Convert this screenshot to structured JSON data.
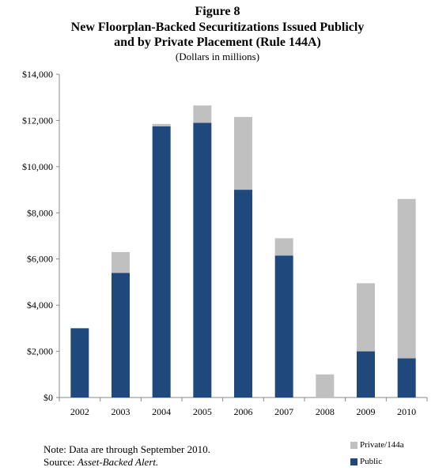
{
  "figure_label": "Figure 8",
  "title_line1": "New Floorplan-Backed Securitizations Issued Publicly",
  "title_line2": "and by Private Placement (Rule 144A)",
  "subtitle": "(Dollars in millions)",
  "note": "Note:  Data are through September 2010.",
  "source_prefix": "Source:  ",
  "source_name": "Asset-Backed Alert.",
  "colors": {
    "public": "#1f497d",
    "private": "#c0c0c0",
    "axis": "#888888"
  },
  "chart_data": {
    "type": "bar",
    "stacked": true,
    "categories": [
      "2002",
      "2003",
      "2004",
      "2005",
      "2006",
      "2007",
      "2008",
      "2009",
      "2010"
    ],
    "series": [
      {
        "name": "Public",
        "values": [
          3000,
          5400,
          11750,
          11900,
          9000,
          6150,
          0,
          2000,
          1700
        ]
      },
      {
        "name": "Private/144a",
        "values": [
          0,
          900,
          100,
          750,
          3150,
          750,
          1000,
          2950,
          6900
        ]
      }
    ],
    "ylim": [
      0,
      14000
    ],
    "yticks": [
      0,
      2000,
      4000,
      6000,
      8000,
      10000,
      12000,
      14000
    ],
    "ytick_labels": [
      "$0",
      "$2,000",
      "$4,000",
      "$6,000",
      "$8,000",
      "$10,000",
      "$12,000",
      "$14,000"
    ],
    "grid": false,
    "legend_position": "bottom-right"
  }
}
